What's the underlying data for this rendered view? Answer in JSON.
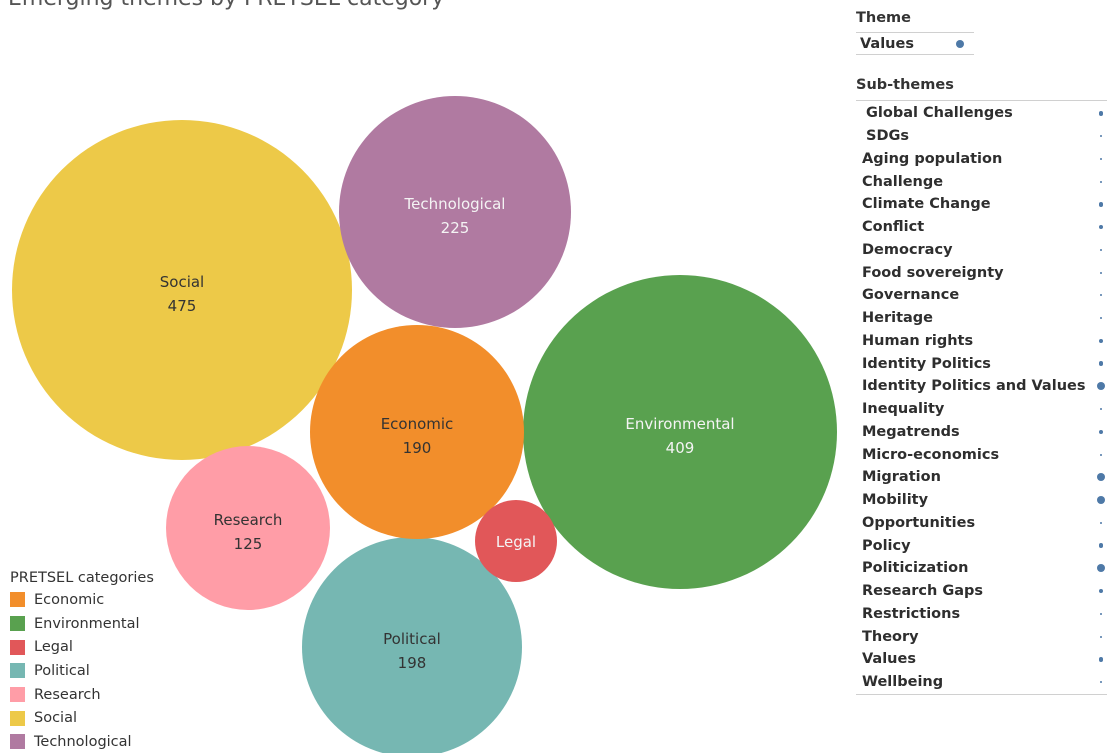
{
  "title": "Emerging themes by PRETSEL category",
  "chart_data": {
    "type": "bubble",
    "items": [
      {
        "name": "Social",
        "value": 475,
        "color": "#edc948"
      },
      {
        "name": "Environmental",
        "value": 409,
        "color": "#59a14f"
      },
      {
        "name": "Technological",
        "value": 225,
        "color": "#b07aa1"
      },
      {
        "name": "Political",
        "value": 198,
        "color": "#76b7b2"
      },
      {
        "name": "Economic",
        "value": 190,
        "color": "#f28e2b"
      },
      {
        "name": "Research",
        "value": 125,
        "color": "#ff9da7"
      },
      {
        "name": "Legal",
        "value": null,
        "color": "#e15759"
      }
    ]
  },
  "legend": {
    "title": "PRETSEL categories",
    "items": [
      {
        "label": "Economic",
        "color": "#f28e2b"
      },
      {
        "label": "Environmental",
        "color": "#59a14f"
      },
      {
        "label": "Legal",
        "color": "#e15759"
      },
      {
        "label": "Political",
        "color": "#76b7b2"
      },
      {
        "label": "Research",
        "color": "#ff9da7"
      },
      {
        "label": "Social",
        "color": "#edc948"
      },
      {
        "label": "Technological",
        "color": "#b07aa1"
      }
    ]
  },
  "theme": {
    "header": "Theme",
    "rows": [
      {
        "label": "Values",
        "size": 3
      }
    ]
  },
  "subthemes": {
    "header": "Sub-themes",
    "rows": [
      {
        "label": "Global Challenges",
        "size": 2,
        "indent": true
      },
      {
        "label": "SDGs",
        "size": 1,
        "indent": true
      },
      {
        "label": "Aging population",
        "size": 1
      },
      {
        "label": "Challenge",
        "size": 1
      },
      {
        "label": "Climate Change",
        "size": 2
      },
      {
        "label": "Conflict",
        "size": 2
      },
      {
        "label": "Democracy",
        "size": 1
      },
      {
        "label": "Food sovereignty",
        "size": 1
      },
      {
        "label": "Governance",
        "size": 1
      },
      {
        "label": "Heritage",
        "size": 1
      },
      {
        "label": "Human rights",
        "size": 2
      },
      {
        "label": "Identity Politics",
        "size": 2
      },
      {
        "label": "Identity Politics and Values",
        "size": 3
      },
      {
        "label": "Inequality",
        "size": 1
      },
      {
        "label": "Megatrends",
        "size": 2
      },
      {
        "label": "Micro-economics",
        "size": 1
      },
      {
        "label": "Migration",
        "size": 3
      },
      {
        "label": "Mobility",
        "size": 3
      },
      {
        "label": "Opportunities",
        "size": 1
      },
      {
        "label": "Policy",
        "size": 2
      },
      {
        "label": "Politicization",
        "size": 3
      },
      {
        "label": "Research Gaps",
        "size": 2
      },
      {
        "label": "Restrictions",
        "size": 1
      },
      {
        "label": "Theory",
        "size": 1
      },
      {
        "label": "Values",
        "size": 2
      },
      {
        "label": "Wellbeing",
        "size": 1
      }
    ]
  }
}
